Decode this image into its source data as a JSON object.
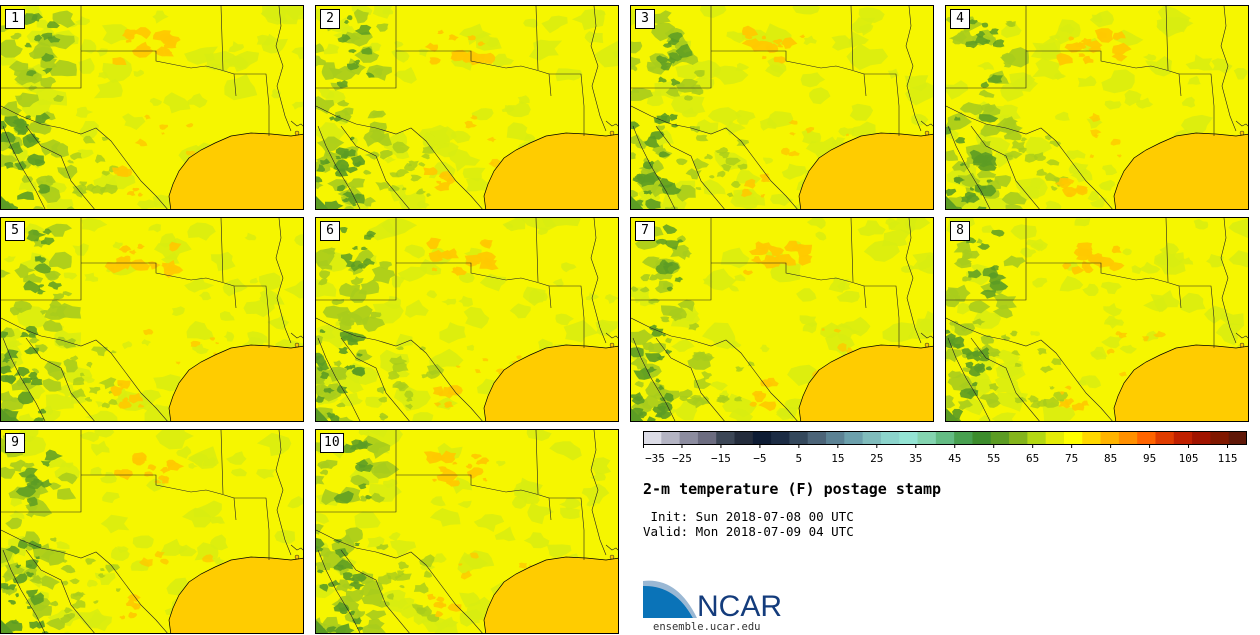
{
  "panels": [
    "1",
    "2",
    "3",
    "4",
    "5",
    "6",
    "7",
    "8",
    "9",
    "10"
  ],
  "title": "2-m temperature (F) postage stamp",
  "init": " Init: Sun 2018-07-08 00 UTC",
  "valid": "Valid: Mon 2018-07-09 04 UTC",
  "logo_text": "NCAR",
  "site": "ensemble.ucar.edu",
  "colorbar": {
    "min": -35,
    "max": 120,
    "step": 5,
    "tick_labels": [
      "−35",
      "−25",
      "−15",
      "−5",
      "5",
      "15",
      "25",
      "35",
      "45",
      "55",
      "65",
      "75",
      "85",
      "95",
      "105",
      "115"
    ],
    "tick_values": [
      -35,
      -25,
      -15,
      -5,
      5,
      15,
      25,
      35,
      45,
      55,
      65,
      75,
      85,
      95,
      105,
      115
    ],
    "colors": [
      "#dcdce6",
      "#b4b4c3",
      "#8c8c9f",
      "#6c6c80",
      "#3c4656",
      "#242c3c",
      "#0e1c34",
      "#1c2c44",
      "#34485c",
      "#4c6478",
      "#5c8294",
      "#6ca0ac",
      "#80bcbc",
      "#8cd4cc",
      "#94e4d4",
      "#84d4b0",
      "#64bc84",
      "#48a050",
      "#3c8c2c",
      "#5c9c24",
      "#84b41c",
      "#b4d814",
      "#e4ec08",
      "#ffff00",
      "#ffd800",
      "#ffb400",
      "#ff9000",
      "#ff6400",
      "#e03c00",
      "#c02000",
      "#a01400",
      "#801800",
      "#601808"
    ]
  },
  "map_colors": {
    "land": "#f6f600",
    "light_green": "#d8ec10",
    "mid_green": "#a8cc1c",
    "dark_green": "#5c9c24",
    "orange": "#ffc800",
    "gulf": "#ffcc00"
  }
}
